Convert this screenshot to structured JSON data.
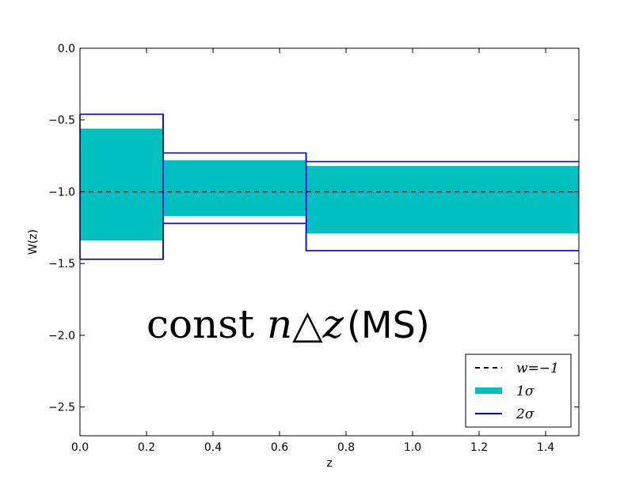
{
  "chart_data": {
    "type": "area",
    "title": "",
    "xlabel": "z",
    "ylabel": "W(z)",
    "xlim": [
      0.0,
      1.5
    ],
    "ylim": [
      -2.7,
      0.0
    ],
    "xticks": [
      0.0,
      0.2,
      0.4,
      0.6,
      0.8,
      1.0,
      1.2,
      1.4
    ],
    "xtick_labels": [
      "0.0",
      "0.2",
      "0.4",
      "0.6",
      "0.8",
      "1.0",
      "1.2",
      "1.4"
    ],
    "yticks": [
      0.0,
      -0.5,
      -1.0,
      -1.5,
      -2.0,
      -2.5
    ],
    "ytick_labels": [
      "0.0",
      "−0.5",
      "−1.0",
      "−1.5",
      "−2.0",
      "−2.5"
    ],
    "bins": [
      {
        "z_min": 0.0,
        "z_max": 0.25,
        "sigma1": [
          -1.34,
          -0.56
        ],
        "sigma2": [
          -1.47,
          -0.46
        ]
      },
      {
        "z_min": 0.25,
        "z_max": 0.68,
        "sigma1": [
          -1.17,
          -0.78
        ],
        "sigma2": [
          -1.22,
          -0.73
        ]
      },
      {
        "z_min": 0.68,
        "z_max": 1.5,
        "sigma1": [
          -1.29,
          -0.82
        ],
        "sigma2": [
          -1.41,
          -0.79
        ]
      }
    ],
    "reference_line": {
      "y": -1.0,
      "style": "dashed",
      "color": "#000000"
    },
    "series": [
      {
        "name": "w=−1",
        "kind": "dashed-line",
        "color": "#000000"
      },
      {
        "name": "1σ",
        "kind": "band",
        "color": "#00bfbf"
      },
      {
        "name": "2σ",
        "kind": "outline",
        "color": "#0000cc"
      }
    ],
    "legend_position": "lower-right",
    "annotation": {
      "math_text": "const ",
      "math_italic": "n△z",
      "plain_text": " (MS)"
    }
  }
}
